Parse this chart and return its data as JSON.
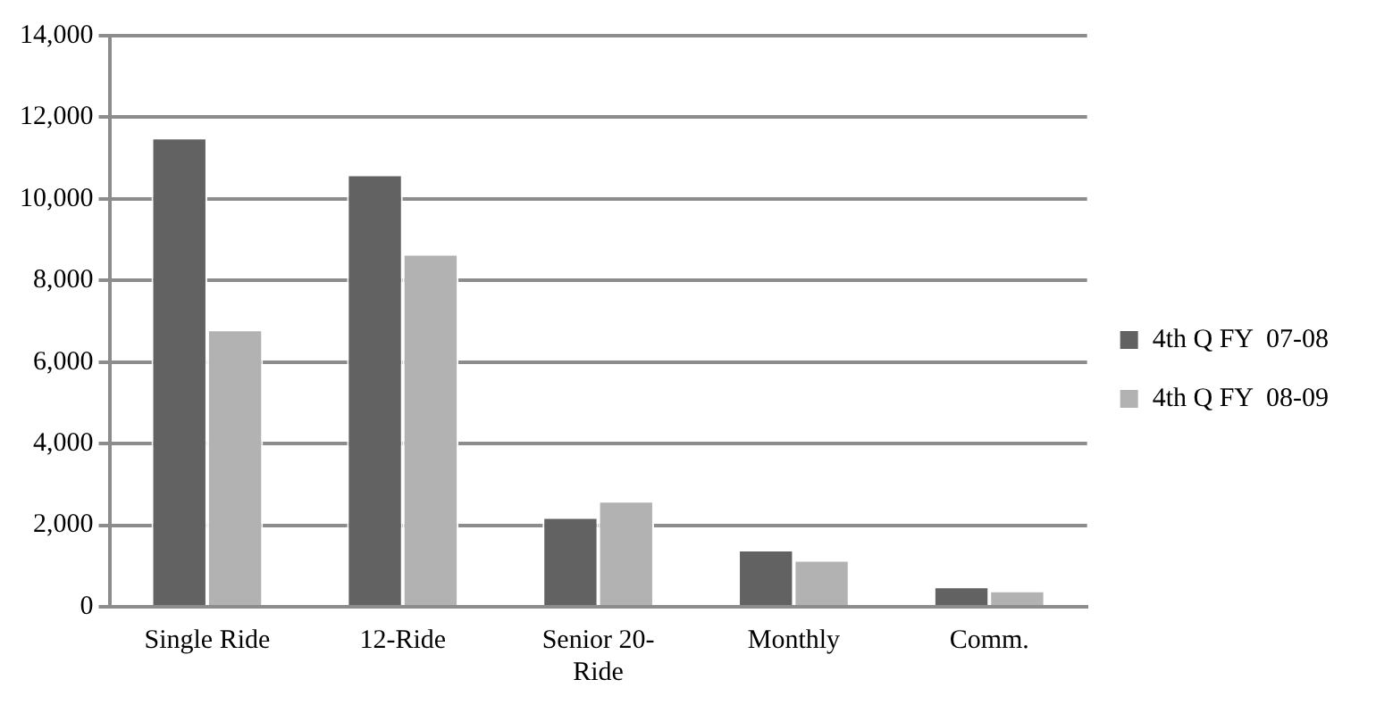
{
  "chart_data": {
    "type": "bar",
    "categories": [
      "Single Ride",
      "12-Ride",
      "Senior 20-Ride",
      "Monthly",
      "Comm."
    ],
    "series": [
      {
        "name": "4th Q FY  07-08",
        "color": "#626262",
        "values": [
          11500,
          10600,
          2200,
          1400,
          500
        ]
      },
      {
        "name": "4th Q FY  08-09",
        "color": "#b2b2b2",
        "values": [
          6800,
          8650,
          2600,
          1150,
          400
        ]
      }
    ],
    "ylim": [
      0,
      14000
    ],
    "yticks": [
      0,
      {
        "value": 2000,
        "label": "2,000"
      },
      {
        "value": 4000,
        "label": "4,000"
      },
      {
        "value": 6000,
        "label": "6,000"
      },
      {
        "value": 8000,
        "label": "8,000"
      },
      {
        "value": 10000,
        "label": "10,000"
      },
      {
        "value": 12000,
        "label": "12,000"
      },
      {
        "value": 14000,
        "label": "14,000"
      }
    ],
    "grid": "y",
    "legend": "right"
  }
}
